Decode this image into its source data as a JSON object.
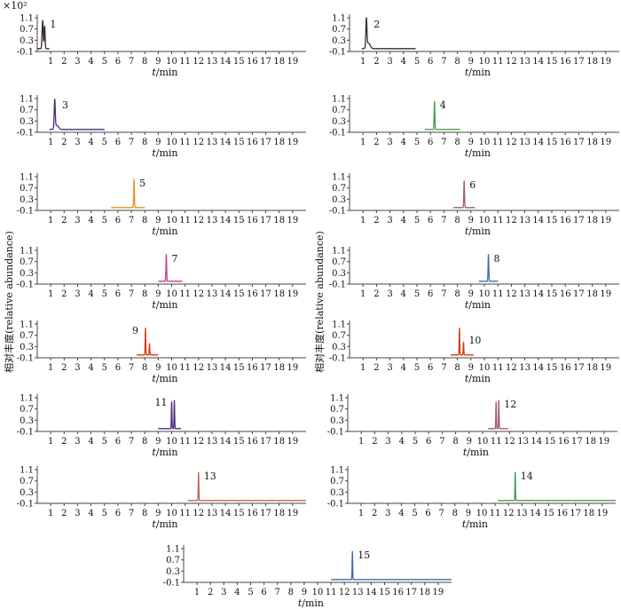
{
  "figure": {
    "y_multiplier": "×10²",
    "y_axis_label": "相对丰度(relative abundance)",
    "x_axis_label_var": "t",
    "x_axis_label_unit": "/min"
  },
  "chart_data": [
    {
      "type": "line",
      "panel_label": "1",
      "title": "",
      "xlabel": "t/min",
      "ylabel": "相对丰度(relative abundance)",
      "xlim": [
        0,
        20
      ],
      "ylim": [
        -0.1,
        1.1
      ],
      "x_ticks": [
        1,
        2,
        3,
        4,
        5,
        6,
        7,
        8,
        9,
        10,
        11,
        12,
        13,
        14,
        15,
        16,
        17,
        18,
        19
      ],
      "y_ticks": [
        -0.1,
        0.3,
        0.7,
        1.1
      ],
      "y_tick_labels": [
        "-0.1",
        "0.3",
        "0.7",
        "1.1"
      ],
      "color": "#3a2a2a",
      "baseline_range": [
        0.0,
        0.9
      ],
      "peaks": [
        {
          "rt": 0.4,
          "height": 1.0,
          "width": 0.1
        },
        {
          "rt": 0.55,
          "height": 0.8,
          "width": 0.08
        }
      ]
    },
    {
      "type": "line",
      "panel_label": "2",
      "title": "",
      "xlabel": "t/min",
      "ylabel": "",
      "xlim": [
        0,
        20
      ],
      "ylim": [
        -0.1,
        1.1
      ],
      "x_ticks": [
        1,
        2,
        3,
        4,
        5,
        6,
        7,
        8,
        9,
        10,
        11,
        12,
        13,
        14,
        15,
        16,
        17,
        18,
        19
      ],
      "y_ticks": [
        -0.1,
        0.3,
        0.7,
        1.1
      ],
      "y_tick_labels": [
        "-0.1",
        "0.3",
        "0.7",
        "1.1"
      ],
      "color": "#3a2a2a",
      "baseline_range": [
        0.9,
        4.9
      ],
      "peaks": [
        {
          "rt": 1.25,
          "height": 1.0,
          "width": 0.09
        },
        {
          "rt": 1.4,
          "height": 0.2,
          "width": 0.3
        }
      ]
    },
    {
      "type": "line",
      "panel_label": "3",
      "title": "",
      "xlabel": "t/min",
      "ylabel": "",
      "xlim": [
        0,
        20
      ],
      "ylim": [
        -0.1,
        1.1
      ],
      "x_ticks": [
        1,
        2,
        3,
        4,
        5,
        6,
        7,
        8,
        9,
        10,
        11,
        12,
        13,
        14,
        15,
        16,
        17,
        18,
        19
      ],
      "y_ticks": [
        -0.1,
        0.3,
        0.7,
        1.1
      ],
      "y_tick_labels": [
        "-0.1",
        "0.3",
        "0.7",
        "1.1"
      ],
      "color": "#4b2a7a",
      "baseline_range": [
        0.9,
        5.0
      ],
      "peaks": [
        {
          "rt": 1.3,
          "height": 1.0,
          "width": 0.09
        },
        {
          "rt": 1.45,
          "height": 0.15,
          "width": 0.3
        }
      ]
    },
    {
      "type": "line",
      "panel_label": "4",
      "title": "",
      "xlabel": "t/min",
      "ylabel": "",
      "xlim": [
        0,
        20
      ],
      "ylim": [
        -0.1,
        1.1
      ],
      "x_ticks": [
        1,
        2,
        3,
        4,
        5,
        6,
        7,
        8,
        9,
        10,
        11,
        12,
        13,
        14,
        15,
        16,
        17,
        18,
        19
      ],
      "y_ticks": [
        -0.1,
        0.3,
        0.7,
        1.1
      ],
      "y_tick_labels": [
        "-0.1",
        "0.3",
        "0.7",
        "1.1"
      ],
      "color": "#4c9a4c",
      "baseline_range": [
        5.6,
        8.2
      ],
      "peaks": [
        {
          "rt": 6.3,
          "height": 1.0,
          "width": 0.06
        }
      ]
    },
    {
      "type": "line",
      "panel_label": "5",
      "title": "",
      "xlabel": "t/min",
      "ylabel": "",
      "xlim": [
        0,
        20
      ],
      "ylim": [
        -0.1,
        1.1
      ],
      "x_ticks": [
        1,
        2,
        3,
        4,
        5,
        6,
        7,
        8,
        9,
        10,
        11,
        12,
        13,
        14,
        15,
        16,
        17,
        18,
        19
      ],
      "y_ticks": [
        -0.1,
        0.3,
        0.7,
        1.1
      ],
      "y_tick_labels": [
        "-0.1",
        "0.3",
        "0.7",
        "1.1"
      ],
      "color": "#e8921a",
      "baseline_range": [
        5.5,
        8.0
      ],
      "peaks": [
        {
          "rt": 7.2,
          "height": 1.0,
          "width": 0.06
        }
      ]
    },
    {
      "type": "line",
      "panel_label": "6",
      "title": "",
      "xlabel": "t/min",
      "ylabel": "",
      "xlim": [
        0,
        20
      ],
      "ylim": [
        -0.1,
        1.1
      ],
      "x_ticks": [
        1,
        2,
        3,
        4,
        5,
        6,
        7,
        8,
        9,
        10,
        11,
        12,
        13,
        14,
        15,
        16,
        17,
        18,
        19
      ],
      "y_ticks": [
        -0.1,
        0.3,
        0.7,
        1.1
      ],
      "y_tick_labels": [
        "-0.1",
        "0.3",
        "0.7",
        "1.1"
      ],
      "color": "#a05c74",
      "baseline_range": [
        7.7,
        9.3
      ],
      "peaks": [
        {
          "rt": 8.5,
          "height": 0.95,
          "width": 0.06
        }
      ]
    },
    {
      "type": "line",
      "panel_label": "7",
      "title": "",
      "xlabel": "t/min",
      "ylabel": "",
      "xlim": [
        0,
        20
      ],
      "ylim": [
        -0.1,
        1.1
      ],
      "x_ticks": [
        1,
        2,
        3,
        4,
        5,
        6,
        7,
        8,
        9,
        10,
        11,
        12,
        13,
        14,
        15,
        16,
        17,
        18,
        19
      ],
      "y_ticks": [
        -0.1,
        0.3,
        0.7,
        1.1
      ],
      "y_tick_labels": [
        "-0.1",
        "0.3",
        "0.7",
        "1.1"
      ],
      "color": "#d43a86",
      "baseline_range": [
        9.0,
        10.8
      ],
      "peaks": [
        {
          "rt": 9.6,
          "height": 0.95,
          "width": 0.06
        }
      ]
    },
    {
      "type": "line",
      "panel_label": "8",
      "title": "",
      "xlabel": "t/min",
      "ylabel": "",
      "xlim": [
        0,
        20
      ],
      "ylim": [
        -0.1,
        1.1
      ],
      "x_ticks": [
        1,
        2,
        3,
        4,
        5,
        6,
        7,
        8,
        9,
        10,
        11,
        12,
        13,
        14,
        15,
        16,
        17,
        18,
        19
      ],
      "y_ticks": [
        -0.1,
        0.3,
        0.7,
        1.1
      ],
      "y_tick_labels": [
        "-0.1",
        "0.3",
        "0.7",
        "1.1"
      ],
      "color": "#3a6eb5",
      "baseline_range": [
        9.6,
        11.0
      ],
      "peaks": [
        {
          "rt": 10.3,
          "height": 0.95,
          "width": 0.06
        }
      ]
    },
    {
      "type": "line",
      "panel_label": "9",
      "title": "",
      "xlabel": "t/min",
      "ylabel": "",
      "xlim": [
        0,
        20
      ],
      "ylim": [
        -0.1,
        1.1
      ],
      "x_ticks": [
        1,
        2,
        3,
        4,
        5,
        6,
        7,
        8,
        9,
        10,
        11,
        12,
        13,
        14,
        15,
        16,
        17,
        18,
        19
      ],
      "y_ticks": [
        -0.1,
        0.3,
        0.7,
        1.1
      ],
      "y_tick_labels": [
        "-0.1",
        "0.3",
        "0.7",
        "1.1"
      ],
      "color": "#d43a1a",
      "baseline_range": [
        7.4,
        9.0
      ],
      "peaks": [
        {
          "rt": 8.05,
          "height": 0.95,
          "width": 0.05
        },
        {
          "rt": 8.35,
          "height": 0.4,
          "width": 0.05
        }
      ]
    },
    {
      "type": "line",
      "panel_label": "10",
      "title": "",
      "xlabel": "t/min",
      "ylabel": "",
      "xlim": [
        0,
        20
      ],
      "ylim": [
        -0.1,
        1.1
      ],
      "x_ticks": [
        1,
        2,
        3,
        4,
        5,
        6,
        7,
        8,
        9,
        10,
        11,
        12,
        13,
        14,
        15,
        16,
        17,
        18,
        19
      ],
      "y_ticks": [
        -0.1,
        0.3,
        0.7,
        1.1
      ],
      "y_tick_labels": [
        "-0.1",
        "0.3",
        "0.7",
        "1.1"
      ],
      "color": "#d43a1a",
      "baseline_range": [
        7.5,
        9.2
      ],
      "peaks": [
        {
          "rt": 8.15,
          "height": 0.95,
          "width": 0.05
        },
        {
          "rt": 8.45,
          "height": 0.45,
          "width": 0.05
        }
      ]
    },
    {
      "type": "line",
      "panel_label": "11",
      "title": "",
      "xlabel": "t/min",
      "ylabel": "",
      "xlim": [
        0,
        20
      ],
      "ylim": [
        -0.1,
        1.1
      ],
      "x_ticks": [
        1,
        2,
        3,
        4,
        5,
        6,
        7,
        8,
        9,
        10,
        11,
        12,
        13,
        14,
        15,
        16,
        17,
        18,
        19
      ],
      "y_ticks": [
        -0.1,
        0.3,
        0.7,
        1.1
      ],
      "y_tick_labels": [
        "-0.1",
        "0.3",
        "0.7",
        "1.1"
      ],
      "color": "#4b2a7a",
      "baseline_range": [
        9.0,
        10.7
      ],
      "peaks": [
        {
          "rt": 10.0,
          "height": 0.95,
          "width": 0.05
        },
        {
          "rt": 10.2,
          "height": 1.0,
          "width": 0.05
        }
      ]
    },
    {
      "type": "line",
      "panel_label": "12",
      "title": "",
      "xlabel": "t/min",
      "ylabel": "",
      "xlim": [
        0,
        20
      ],
      "ylim": [
        -0.1,
        1.1
      ],
      "x_ticks": [
        1,
        2,
        3,
        4,
        5,
        6,
        7,
        8,
        9,
        10,
        11,
        12,
        13,
        14,
        15,
        16,
        17,
        18,
        19
      ],
      "y_ticks": [
        -0.1,
        0.3,
        0.7,
        1.1
      ],
      "y_tick_labels": [
        "-0.1",
        "0.3",
        "0.7",
        "1.1"
      ],
      "color": "#a05c74",
      "baseline_range": [
        10.4,
        11.9
      ],
      "peaks": [
        {
          "rt": 11.0,
          "height": 0.95,
          "width": 0.05
        },
        {
          "rt": 11.2,
          "height": 1.0,
          "width": 0.05
        }
      ]
    },
    {
      "type": "line",
      "panel_label": "13",
      "title": "",
      "xlabel": "t/min",
      "ylabel": "",
      "xlim": [
        0,
        20
      ],
      "ylim": [
        -0.1,
        1.1
      ],
      "x_ticks": [
        1,
        2,
        3,
        4,
        5,
        6,
        7,
        8,
        9,
        10,
        11,
        12,
        13,
        14,
        15,
        16,
        17,
        18,
        19
      ],
      "y_ticks": [
        -0.1,
        0.3,
        0.7,
        1.1
      ],
      "y_tick_labels": [
        "-0.1",
        "0.3",
        "0.7",
        "1.1"
      ],
      "color": "#b86b4a",
      "baseline_range": [
        11.2,
        20.0
      ],
      "peaks": [
        {
          "rt": 12.0,
          "height": 1.0,
          "width": 0.05
        }
      ]
    },
    {
      "type": "line",
      "panel_label": "14",
      "title": "",
      "xlabel": "t/min",
      "ylabel": "",
      "xlim": [
        0,
        20
      ],
      "ylim": [
        -0.1,
        1.1
      ],
      "x_ticks": [
        1,
        2,
        3,
        4,
        5,
        6,
        7,
        8,
        9,
        10,
        11,
        12,
        13,
        14,
        15,
        16,
        17,
        18,
        19
      ],
      "y_ticks": [
        -0.1,
        0.3,
        0.7,
        1.1
      ],
      "y_tick_labels": [
        "-0.1",
        "0.3",
        "0.7",
        "1.1"
      ],
      "color": "#4c9a4c",
      "baseline_range": [
        11.2,
        20.0
      ],
      "peaks": [
        {
          "rt": 12.5,
          "height": 1.0,
          "width": 0.05
        }
      ]
    },
    {
      "type": "line",
      "panel_label": "15",
      "title": "",
      "xlabel": "t/min",
      "ylabel": "",
      "xlim": [
        0,
        20
      ],
      "ylim": [
        -0.1,
        1.1
      ],
      "x_ticks": [
        1,
        2,
        3,
        4,
        5,
        6,
        7,
        8,
        9,
        10,
        11,
        12,
        13,
        14,
        15,
        16,
        17,
        18,
        19
      ],
      "y_ticks": [
        -0.1,
        0.3,
        0.7,
        1.1
      ],
      "y_tick_labels": [
        "-0.1",
        "0.3",
        "0.7",
        "1.1"
      ],
      "color": "#3a6eb5",
      "baseline_range": [
        11.0,
        20.0
      ],
      "peaks": [
        {
          "rt": 12.6,
          "height": 1.0,
          "width": 0.05
        }
      ]
    }
  ]
}
